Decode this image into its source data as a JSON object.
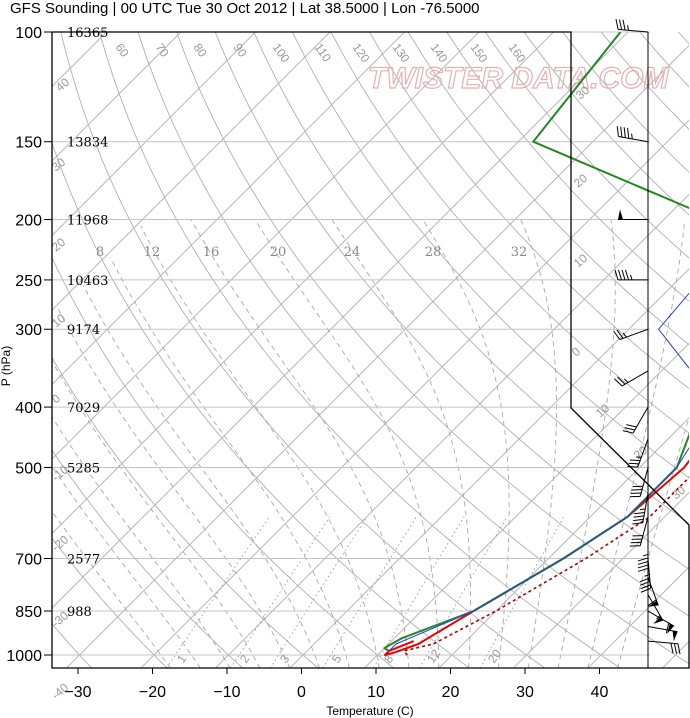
{
  "title": "GFS Sounding | 00 UTC Tue 30 Oct 2012 | Lat 38.5000 | Lon -76.5000",
  "watermark": "TWISTER DATA.COM",
  "chart_data": {
    "type": "line",
    "chart_kind": "skew-T log-P sounding",
    "xlabel": "Temperature (C)",
    "ylabel": "P (hPa)",
    "xlim": [
      -34,
      48
    ],
    "ylim": [
      1050,
      100
    ],
    "y_scale": "log",
    "x_ticks": [
      "−30",
      "−20",
      "−10",
      "0",
      "10",
      "20",
      "30",
      "40"
    ],
    "y_ticks": [
      {
        "p": 100,
        "label": "100",
        "height": "16365"
      },
      {
        "p": 150,
        "label": "150",
        "height": "13834"
      },
      {
        "p": 200,
        "label": "200",
        "height": "11968"
      },
      {
        "p": 250,
        "label": "250",
        "height": "10463"
      },
      {
        "p": 300,
        "label": "300",
        "height": "9174"
      },
      {
        "p": 400,
        "label": "400",
        "height": "7029"
      },
      {
        "p": 500,
        "label": "500",
        "height": "5285"
      },
      {
        "p": 700,
        "label": "700",
        "height": "2577"
      },
      {
        "p": 850,
        "label": "850",
        "height": "988"
      },
      {
        "p": 1000,
        "label": "1000",
        "height": ""
      }
    ],
    "isotherm_labels": [
      "40",
      "30",
      "20",
      "10",
      "0",
      "-10",
      "-20",
      "-30",
      "-40",
      "30",
      "20",
      "10",
      "0",
      "10",
      "20",
      "30"
    ],
    "dry_adiabat_labels": [
      "60",
      "70",
      "80",
      "90",
      "100",
      "110",
      "120",
      "130",
      "140",
      "150",
      "160"
    ],
    "mixing_ratio_labels": [
      "8",
      "12",
      "16",
      "20",
      "24",
      "28",
      "32"
    ],
    "bottom_mixing_labels": [
      "1",
      "2",
      "3",
      "5",
      "8",
      "12",
      "20"
    ],
    "series": [
      {
        "name": "temperature",
        "color": "#ee0000",
        "points": [
          [
            13,
            950
          ],
          [
            11,
            985
          ],
          [
            11,
            1000
          ],
          [
            12,
            990
          ],
          [
            14,
            960
          ],
          [
            17,
            850
          ],
          [
            22,
            700
          ],
          [
            25,
            600
          ],
          [
            26,
            500
          ],
          [
            24,
            400
          ],
          [
            20,
            350
          ],
          [
            13,
            300
          ],
          [
            6,
            250
          ],
          [
            -3,
            200
          ],
          [
            -8,
            150
          ],
          [
            -10,
            100
          ]
        ]
      },
      {
        "name": "dewpoint",
        "color": "#228822",
        "points": [
          [
            11,
            985
          ],
          [
            10,
            975
          ],
          [
            11,
            940
          ],
          [
            17,
            850
          ],
          [
            22,
            700
          ],
          [
            25,
            600
          ],
          [
            25,
            500
          ],
          [
            20,
            400
          ],
          [
            15,
            350
          ],
          [
            10,
            300
          ],
          [
            14,
            250
          ],
          [
            -3,
            200
          ],
          [
            -38,
            150
          ],
          [
            -41,
            100
          ]
        ]
      },
      {
        "name": "virtual temperature",
        "color": "#1f3fe0",
        "points": [
          [
            11,
            985
          ],
          [
            11,
            960
          ],
          [
            17,
            850
          ],
          [
            22,
            700
          ],
          [
            25,
            600
          ],
          [
            25,
            500
          ],
          [
            22,
            400
          ],
          [
            14,
            350
          ],
          [
            4,
            300
          ],
          [
            3,
            250
          ],
          [
            -3,
            200
          ],
          [
            -9,
            150
          ],
          [
            -11,
            100
          ]
        ]
      },
      {
        "name": "parcel",
        "color": "#aa0000",
        "dashed": true,
        "points": [
          [
            14,
            1000
          ],
          [
            13,
            985
          ],
          [
            16,
            960
          ],
          [
            20,
            850
          ],
          [
            25,
            700
          ],
          [
            28,
            600
          ],
          [
            28,
            500
          ],
          [
            26,
            400
          ],
          [
            20,
            350
          ]
        ]
      }
    ],
    "wind_barbs": [
      {
        "p": 100,
        "dir": 275,
        "kt": 35
      },
      {
        "p": 150,
        "dir": 280,
        "kt": 45
      },
      {
        "p": 200,
        "dir": 270,
        "kt": 50
      },
      {
        "p": 250,
        "dir": 270,
        "kt": 45
      },
      {
        "p": 300,
        "dir": 250,
        "kt": 25
      },
      {
        "p": 350,
        "dir": 240,
        "kt": 25
      },
      {
        "p": 400,
        "dir": 210,
        "kt": 30
      },
      {
        "p": 450,
        "dir": 200,
        "kt": 35
      },
      {
        "p": 500,
        "dir": 195,
        "kt": 40
      },
      {
        "p": 550,
        "dir": 190,
        "kt": 45
      },
      {
        "p": 600,
        "dir": 195,
        "kt": 40
      },
      {
        "p": 650,
        "dir": 180,
        "kt": 45
      },
      {
        "p": 700,
        "dir": 175,
        "kt": 45
      },
      {
        "p": 750,
        "dir": 160,
        "kt": 60
      },
      {
        "p": 800,
        "dir": 150,
        "kt": 55
      },
      {
        "p": 850,
        "dir": 120,
        "kt": 60
      },
      {
        "p": 900,
        "dir": 100,
        "kt": 50
      },
      {
        "p": 950,
        "dir": 95,
        "kt": 30
      }
    ]
  }
}
